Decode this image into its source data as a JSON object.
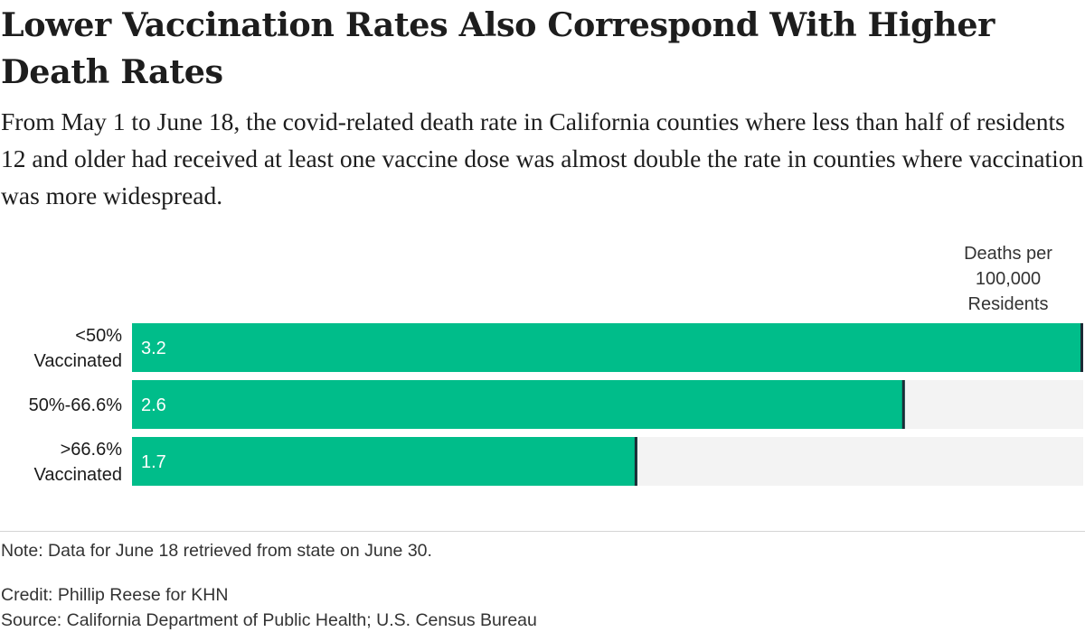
{
  "title": "Lower Vaccination Rates Also Correspond With Higher Death Rates",
  "subtitle": "From May 1 to June 18, the covid-related death rate in California counties where less than half of residents 12 and older had received at least one vaccine dose was almost double the rate in counties where vaccination was more widespread.",
  "colors": {
    "bar": "#00bd8a",
    "track": "#f3f3f3",
    "end_marker": "#1c2b36",
    "value_label": "#ffffff"
  },
  "chart_data": {
    "type": "bar",
    "orientation": "horizontal",
    "value_header": [
      "Deaths per",
      "100,000",
      "Residents"
    ],
    "categories": [
      {
        "label_lines": [
          "<50%",
          "Vaccinated"
        ]
      },
      {
        "label_lines": [
          "50%-66.6%"
        ]
      },
      {
        "label_lines": [
          ">66.6%",
          "Vaccinated"
        ]
      }
    ],
    "values": [
      3.2,
      2.6,
      1.7
    ],
    "value_labels": [
      "3.2",
      "2.6",
      "1.7"
    ],
    "xlim": [
      0,
      3.2
    ]
  },
  "footer": {
    "note": "Note: Data for June 18 retrieved from state on June 30.",
    "credit": "Credit: Phillip Reese for KHN",
    "source": "Source: California Department of Public Health; U.S. Census Bureau"
  }
}
